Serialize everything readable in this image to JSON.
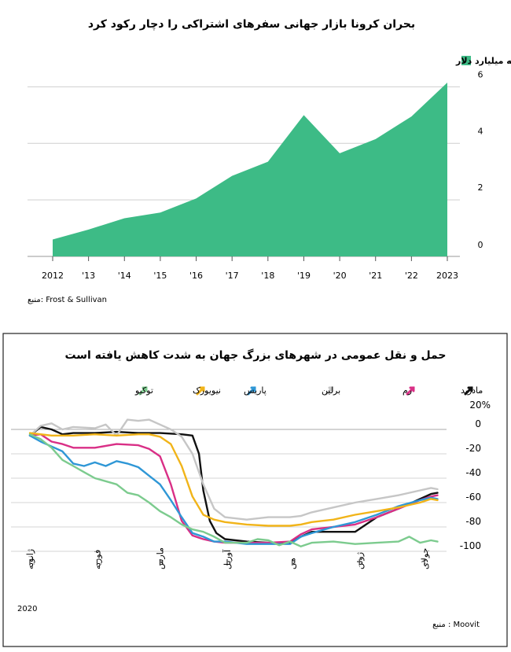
{
  "chart_data": [
    {
      "type": "area",
      "title": "بحران کرونا بازار جهانی سفرهای اشتراکی را دچار رکود کرد",
      "legend": [
        "ارزش خالص بازار به میلیارد دلار"
      ],
      "legend_position": "top-right",
      "x": [
        "2012",
        "'13",
        "'14",
        "'15",
        "'16",
        "'17",
        "'18",
        "'19",
        "'20",
        "'21",
        "'22",
        "2023"
      ],
      "series": [
        {
          "name": "ارزش خالص بازار به میلیارد دلار",
          "values": [
            0.6,
            0.95,
            1.35,
            1.55,
            2.05,
            2.85,
            3.35,
            5.0,
            3.65,
            4.15,
            4.95,
            6.15
          ]
        }
      ],
      "yticks": [
        "0",
        "2",
        "4",
        "6"
      ],
      "ylim": [
        0,
        6.4
      ],
      "grid": true,
      "color": "#3dbb86",
      "source": "منبع: Frost & Sullivan"
    },
    {
      "type": "line",
      "title": "حمل و نقل عمومی در شهرهای بزرگ جهان به شدت کاهش یافته است",
      "legend_position": "top",
      "xticks": [
        "ژانویه",
        "فوریه",
        "مارس",
        "آوریل",
        "می",
        "ژوئن",
        "جولای"
      ],
      "xtick_values": [
        0,
        31,
        60,
        91,
        121,
        152,
        182
      ],
      "year_label": "2020",
      "xlim": [
        0,
        190
      ],
      "yticks": [
        "20%",
        "0",
        "-20",
        "-40",
        "-60",
        "-80",
        "-100"
      ],
      "ytick_values": [
        20,
        0,
        -20,
        -40,
        -60,
        -80,
        -100
      ],
      "ylim": [
        -105,
        22
      ],
      "grid": true,
      "source": "منبع : Moovit",
      "series": [
        {
          "name": "مادرید",
          "color": "#111111",
          "x": [
            0,
            5,
            10,
            15,
            20,
            30,
            40,
            50,
            60,
            70,
            75,
            78,
            80,
            83,
            86,
            90,
            100,
            110,
            120,
            125,
            130,
            135,
            140,
            145,
            150,
            160,
            170,
            180,
            185,
            188
          ],
          "y": [
            -5,
            2,
            0,
            -4,
            -3,
            -3,
            -2,
            -3,
            -3,
            -4,
            -5,
            -20,
            -50,
            -75,
            -85,
            -90,
            -92,
            -93,
            -93,
            -88,
            -84,
            -84,
            -84,
            -84,
            -84,
            -72,
            -65,
            -57,
            -53,
            -52
          ]
        },
        {
          "name": "رم",
          "color": "#d92f86",
          "x": [
            0,
            5,
            10,
            15,
            20,
            30,
            40,
            50,
            55,
            60,
            65,
            70,
            75,
            80,
            85,
            90,
            100,
            110,
            120,
            125,
            130,
            140,
            150,
            160,
            170,
            180,
            185,
            188
          ],
          "y": [
            -5,
            -4,
            -10,
            -12,
            -15,
            -15,
            -12,
            -13,
            -16,
            -22,
            -45,
            -75,
            -87,
            -90,
            -92,
            -93,
            -93,
            -93,
            -92,
            -86,
            -82,
            -80,
            -78,
            -72,
            -65,
            -58,
            -55,
            -54
          ]
        },
        {
          "name": "برلین",
          "color": "#c6c6c6",
          "x": [
            0,
            5,
            10,
            15,
            20,
            30,
            35,
            40,
            45,
            50,
            55,
            60,
            65,
            70,
            75,
            80,
            85,
            90,
            100,
            110,
            120,
            125,
            130,
            140,
            150,
            160,
            170,
            180,
            185,
            188
          ],
          "y": [
            -5,
            3,
            5,
            0,
            2,
            1,
            4,
            -5,
            8,
            7,
            8,
            4,
            0,
            -6,
            -20,
            -45,
            -65,
            -72,
            -74,
            -72,
            -72,
            -71,
            -68,
            -64,
            -60,
            -57,
            -54,
            -50,
            -48,
            -49
          ]
        },
        {
          "name": "پاریس",
          "color": "#2f97d6",
          "x": [
            0,
            5,
            10,
            15,
            20,
            25,
            30,
            35,
            40,
            45,
            50,
            55,
            60,
            65,
            70,
            75,
            80,
            85,
            90,
            100,
            110,
            120,
            125,
            130,
            140,
            150,
            160,
            170,
            180,
            185,
            188
          ],
          "y": [
            -5,
            -10,
            -14,
            -18,
            -28,
            -30,
            -27,
            -30,
            -26,
            -28,
            -31,
            -38,
            -45,
            -58,
            -72,
            -85,
            -88,
            -92,
            -92,
            -94,
            -94,
            -94,
            -88,
            -85,
            -80,
            -76,
            -70,
            -63,
            -58,
            -56,
            -57
          ]
        },
        {
          "name": "نیویورک",
          "color": "#f1b419",
          "x": [
            0,
            5,
            10,
            15,
            20,
            30,
            40,
            50,
            55,
            60,
            65,
            70,
            75,
            80,
            85,
            90,
            100,
            110,
            120,
            125,
            130,
            140,
            150,
            160,
            170,
            180,
            185,
            188
          ],
          "y": [
            -3,
            -4,
            -5,
            -5,
            -5,
            -4,
            -5,
            -4,
            -4,
            -6,
            -12,
            -30,
            -55,
            -70,
            -74,
            -76,
            -78,
            -79,
            -79,
            -78,
            -76,
            -74,
            -70,
            -67,
            -64,
            -60,
            -57,
            -58
          ]
        },
        {
          "name": "توکیو",
          "color": "#7ccb8e",
          "x": [
            0,
            5,
            10,
            15,
            20,
            25,
            30,
            40,
            45,
            50,
            55,
            60,
            65,
            70,
            75,
            80,
            85,
            90,
            100,
            105,
            110,
            115,
            120,
            125,
            130,
            140,
            150,
            160,
            170,
            175,
            180,
            185,
            188
          ],
          "y": [
            -4,
            -8,
            -15,
            -25,
            -30,
            -35,
            -40,
            -45,
            -52,
            -54,
            -60,
            -67,
            -72,
            -78,
            -82,
            -84,
            -88,
            -93,
            -93,
            -90,
            -91,
            -95,
            -92,
            -96,
            -93,
            -92,
            -94,
            -93,
            -92,
            -88,
            -93,
            -91,
            -92
          ]
        }
      ]
    }
  ]
}
